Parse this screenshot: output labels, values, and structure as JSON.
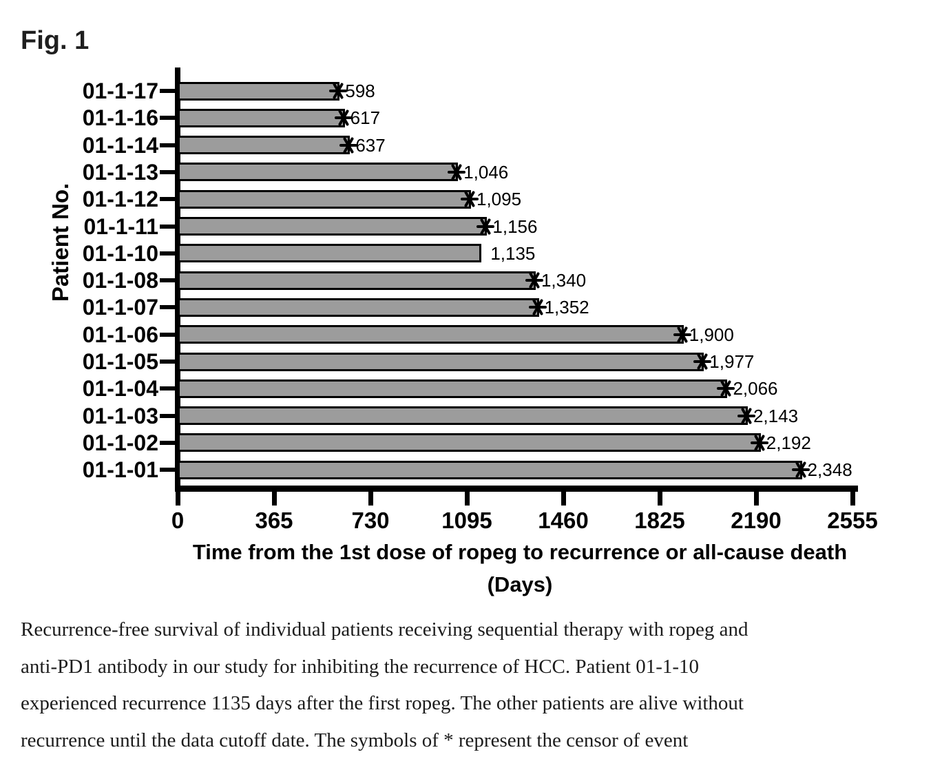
{
  "figure": {
    "label": "Fig. 1"
  },
  "chart_data": {
    "type": "bar",
    "orientation": "horizontal",
    "title": "",
    "ylabel": "Patient No.",
    "xlabel": "Time from the 1st dose of ropeg to recurrence or all-cause death",
    "xlabel_unit": "(Days)",
    "xlim": [
      0,
      2555
    ],
    "xticks": [
      0,
      365,
      730,
      1095,
      1460,
      1825,
      2190,
      2555
    ],
    "grid": false,
    "legend": false,
    "bar_fill_color": "#9c9c9c",
    "bar_border_color": "#000000",
    "censor_symbol": "*",
    "categories": [
      "01-1-17",
      "01-1-16",
      "01-1-14",
      "01-1-13",
      "01-1-12",
      "01-1-11",
      "01-1-10",
      "01-1-08",
      "01-1-07",
      "01-1-06",
      "01-1-05",
      "01-1-04",
      "01-1-03",
      "01-1-02",
      "01-1-01"
    ],
    "values": [
      598,
      617,
      637,
      1046,
      1095,
      1156,
      1135,
      1340,
      1352,
      1900,
      1977,
      2066,
      2143,
      2192,
      2348
    ],
    "value_labels": [
      "598",
      "617",
      "637",
      "1,046",
      "1,095",
      "1,156",
      "1,135",
      "1,340",
      "1,352",
      "1,900",
      "1,977",
      "2,066",
      "2,143",
      "2,192",
      "2,348"
    ],
    "censored": [
      true,
      true,
      true,
      true,
      true,
      true,
      false,
      true,
      true,
      true,
      true,
      true,
      true,
      true,
      true
    ]
  },
  "caption": {
    "lines": [
      "Recurrence-free survival of individual patients receiving sequential therapy with ropeg and",
      "anti-PD1 antibody in our study for inhibiting the recurrence of HCC. Patient 01-1-10",
      "experienced recurrence 1135 days after the first ropeg. The other patients are alive without",
      "recurrence until the data cutoff date. The symbols of * represent the censor of event"
    ]
  }
}
